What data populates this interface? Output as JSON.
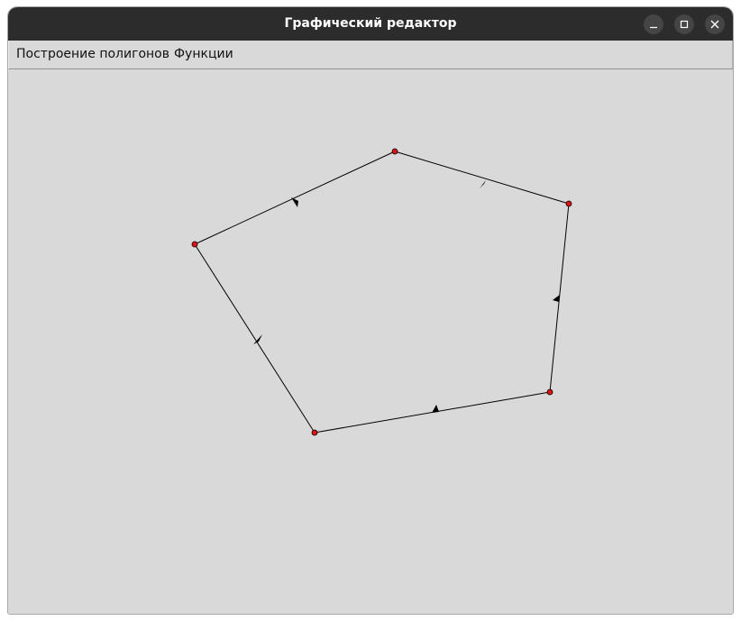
{
  "window": {
    "title": "Графический редактор"
  },
  "menu": {
    "items": [
      {
        "label": "Построение полигонов"
      },
      {
        "label": "Функции"
      }
    ]
  },
  "colors": {
    "titlebar": "#2c2c2c",
    "canvas_bg": "#d9d9d9",
    "vertex_fill": "#e01414",
    "edge_stroke": "#000000"
  },
  "icons": {
    "minimize": "minimize-icon",
    "maximize": "maximize-icon",
    "close": "close-icon"
  }
}
